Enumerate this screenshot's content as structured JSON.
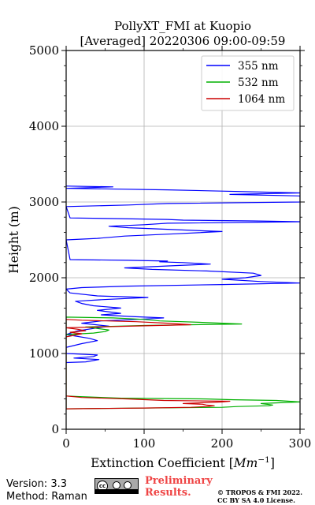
{
  "chart_data": {
    "type": "line",
    "title": "PollyXT_FMI at Kuopio",
    "subtitle": "[Averaged] 20220306 09:00-09:59",
    "xlabel": "Extinction Coefficient [Mm⁻¹]",
    "xlabel_main": "Extinction Coefficient [",
    "xlabel_unit": "Mm",
    "xlabel_exp": "−1",
    "xlabel_close": "]",
    "ylabel": "Height (m)",
    "xlim": [
      0,
      300
    ],
    "ylim": [
      0,
      5000
    ],
    "xticks": [
      0,
      100,
      200,
      300
    ],
    "yticks": [
      0,
      1000,
      2000,
      3000,
      4000,
      5000
    ],
    "grid": true,
    "legend_position": "top-right",
    "series": [
      {
        "name": "355 nm",
        "color": "#0000ff",
        "points": [
          [
            0,
            880
          ],
          [
            25,
            890
          ],
          [
            42,
            920
          ],
          [
            10,
            940
          ],
          [
            35,
            960
          ],
          [
            40,
            980
          ],
          [
            12,
            995
          ],
          [
            0,
            1000
          ],
          [
            0,
            1080
          ],
          [
            20,
            1130
          ],
          [
            40,
            1170
          ],
          [
            30,
            1200
          ],
          [
            0,
            1250
          ],
          [
            15,
            1300
          ],
          [
            35,
            1330
          ],
          [
            55,
            1360
          ],
          [
            20,
            1400
          ],
          [
            45,
            1430
          ],
          [
            80,
            1445
          ],
          [
            110,
            1460
          ],
          [
            125,
            1470
          ],
          [
            80,
            1490
          ],
          [
            45,
            1510
          ],
          [
            70,
            1530
          ],
          [
            40,
            1570
          ],
          [
            70,
            1600
          ],
          [
            35,
            1630
          ],
          [
            20,
            1660
          ],
          [
            12,
            1690
          ],
          [
            45,
            1710
          ],
          [
            105,
            1740
          ],
          [
            40,
            1760
          ],
          [
            5,
            1800
          ],
          [
            0,
            1850
          ],
          [
            20,
            1870
          ],
          [
            80,
            1890
          ],
          [
            200,
            1910
          ],
          [
            300,
            1930
          ],
          [
            250,
            1950
          ],
          [
            200,
            1980
          ],
          [
            230,
            2000
          ],
          [
            250,
            2030
          ],
          [
            240,
            2060
          ],
          [
            180,
            2090
          ],
          [
            110,
            2110
          ],
          [
            75,
            2130
          ],
          [
            140,
            2160
          ],
          [
            185,
            2180
          ],
          [
            150,
            2200
          ],
          [
            120,
            2210
          ],
          [
            130,
            2220
          ],
          [
            80,
            2230
          ],
          [
            5,
            2240
          ],
          [
            0,
            2500
          ],
          [
            40,
            2520
          ],
          [
            75,
            2550
          ],
          [
            140,
            2580
          ],
          [
            200,
            2610
          ],
          [
            175,
            2620
          ],
          [
            130,
            2640
          ],
          [
            80,
            2660
          ],
          [
            55,
            2680
          ],
          [
            100,
            2700
          ],
          [
            130,
            2720
          ],
          [
            300,
            2740
          ],
          [
            240,
            2750
          ],
          [
            150,
            2760
          ],
          [
            130,
            2770
          ],
          [
            70,
            2780
          ],
          [
            5,
            2790
          ],
          [
            0,
            2940
          ],
          [
            80,
            2960
          ],
          [
            130,
            2980
          ],
          [
            300,
            3000
          ],
          [
            300,
            3080
          ],
          [
            210,
            3100
          ],
          [
            300,
            3120
          ],
          [
            130,
            3160
          ],
          [
            0,
            3180
          ],
          [
            60,
            3200
          ],
          [
            0,
            3210
          ]
        ]
      },
      {
        "name": "532 nm",
        "color": "#00b000",
        "points": [
          [
            0,
            1250
          ],
          [
            35,
            1270
          ],
          [
            50,
            1290
          ],
          [
            55,
            1310
          ],
          [
            40,
            1330
          ],
          [
            25,
            1350
          ],
          [
            100,
            1370
          ],
          [
            225,
            1390
          ],
          [
            175,
            1410
          ],
          [
            120,
            1430
          ],
          [
            100,
            1450
          ],
          [
            60,
            1470
          ],
          [
            0,
            1480
          ],
          [
            0,
            270
          ],
          [
            100,
            280
          ],
          [
            200,
            290
          ],
          [
            220,
            300
          ],
          [
            260,
            310
          ],
          [
            265,
            320
          ],
          [
            250,
            340
          ],
          [
            300,
            360
          ],
          [
            270,
            380
          ],
          [
            215,
            390
          ],
          [
            180,
            400
          ],
          [
            70,
            410
          ],
          [
            20,
            430
          ],
          [
            0,
            440
          ]
        ]
      },
      {
        "name": "1064 nm",
        "color": "#cc0000",
        "points": [
          [
            0,
            1220
          ],
          [
            10,
            1240
          ],
          [
            20,
            1260
          ],
          [
            5,
            1280
          ],
          [
            25,
            1300
          ],
          [
            15,
            1320
          ],
          [
            0,
            1340
          ],
          [
            80,
            1360
          ],
          [
            160,
            1380
          ],
          [
            130,
            1400
          ],
          [
            90,
            1420
          ],
          [
            20,
            1440
          ],
          [
            0,
            1450
          ],
          [
            0,
            270
          ],
          [
            100,
            280
          ],
          [
            160,
            290
          ],
          [
            180,
            300
          ],
          [
            190,
            310
          ],
          [
            180,
            320
          ],
          [
            175,
            330
          ],
          [
            150,
            340
          ],
          [
            200,
            360
          ],
          [
            210,
            370
          ],
          [
            125,
            380
          ],
          [
            80,
            400
          ],
          [
            20,
            420
          ],
          [
            0,
            440
          ]
        ]
      }
    ]
  },
  "footer": {
    "version": "Version: 3.3",
    "method": "Method: Raman",
    "preliminary_line1": "Preliminary",
    "preliminary_line2": "Results.",
    "copyright": "© TROPOS & FMI 2022.",
    "license": "CC BY SA 4.0 License.",
    "cc_badge_text": "cc"
  }
}
